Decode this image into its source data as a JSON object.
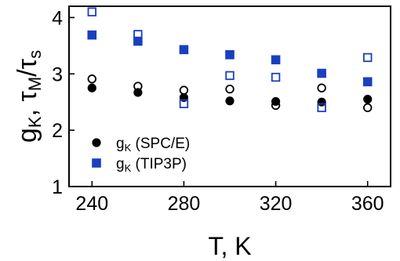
{
  "chart_data": {
    "type": "scatter",
    "title": "",
    "xlabel": "T, K",
    "ylabel_main": "g",
    "ylabel_sub": "K",
    "ylabel_sep": ", ",
    "ylabel_tau1": "τ",
    "ylabel_tau1_sub": "M",
    "ylabel_slash": "/",
    "ylabel_tau2": "τ",
    "ylabel_tau2_sub": "s",
    "xlim": [
      230,
      370
    ],
    "ylim": [
      1,
      4.2
    ],
    "xticks": [
      240,
      280,
      320,
      360
    ],
    "yticks": [
      1,
      2,
      3,
      4
    ],
    "grid": false,
    "legend_position": "lower-left",
    "series": [
      {
        "name": "g_K (SPC/E)",
        "legend_main": "g",
        "legend_sub": "K",
        "legend_suffix": " (SPC/E)",
        "marker": "filled-circle",
        "color": "#000000",
        "in_legend": true,
        "x": [
          240,
          260,
          280,
          300,
          320,
          340,
          360
        ],
        "y": [
          2.75,
          2.67,
          2.58,
          2.52,
          2.51,
          2.5,
          2.55
        ]
      },
      {
        "name": "",
        "marker": "open-circle",
        "color": "#000000",
        "in_legend": false,
        "x": [
          240,
          260,
          280,
          300,
          320,
          340,
          360
        ],
        "y": [
          2.91,
          2.78,
          2.71,
          2.73,
          2.44,
          2.75,
          2.4
        ]
      },
      {
        "name": "g_K (TIP3P)",
        "legend_main": "g",
        "legend_sub": "K",
        "legend_suffix": " (TIP3P)",
        "marker": "filled-square",
        "color": "#1a3fc0",
        "in_legend": true,
        "x": [
          240,
          260,
          280,
          300,
          320,
          340,
          360
        ],
        "y": [
          3.69,
          3.58,
          3.43,
          3.34,
          3.25,
          3.01,
          2.86
        ]
      },
      {
        "name": "",
        "marker": "open-square",
        "color": "#1a3fc0",
        "in_legend": false,
        "x": [
          240,
          260,
          280,
          300,
          320,
          340,
          360
        ],
        "y": [
          4.1,
          3.7,
          2.47,
          2.97,
          2.94,
          2.4,
          3.29
        ]
      }
    ]
  }
}
